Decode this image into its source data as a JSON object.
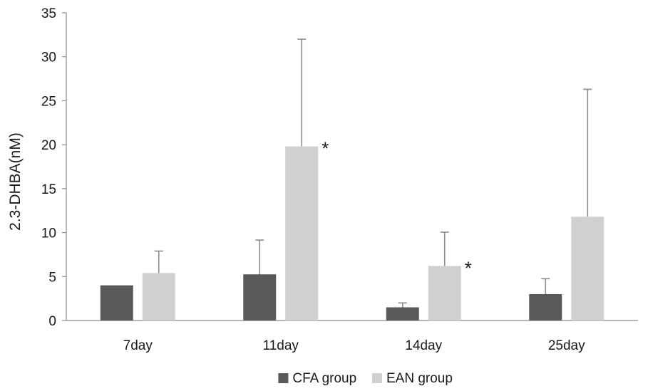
{
  "chart_data": {
    "type": "bar",
    "title": "",
    "xlabel": "",
    "ylabel": "2.3-DHBA(nM)",
    "ylim": [
      0,
      35
    ],
    "yticks": [
      0,
      5,
      10,
      15,
      20,
      25,
      30,
      35
    ],
    "categories": [
      "7day",
      "11day",
      "14day",
      "25day"
    ],
    "series": [
      {
        "name": "CFA group",
        "color": "#595959",
        "values": [
          4.0,
          5.25,
          1.5,
          3.0
        ],
        "error_upper": [
          4.0,
          9.15,
          2.0,
          4.75
        ],
        "annotations": [
          "",
          "",
          "",
          ""
        ]
      },
      {
        "name": "EAN group",
        "color": "#d0d0d0",
        "values": [
          5.4,
          19.8,
          6.2,
          11.8
        ],
        "error_upper": [
          7.9,
          32.0,
          10.05,
          26.3
        ],
        "annotations": [
          "",
          "*",
          "*",
          ""
        ]
      }
    ],
    "error_bar_color": "#8c8c8c",
    "grid": false,
    "legend_position": "bottom"
  }
}
